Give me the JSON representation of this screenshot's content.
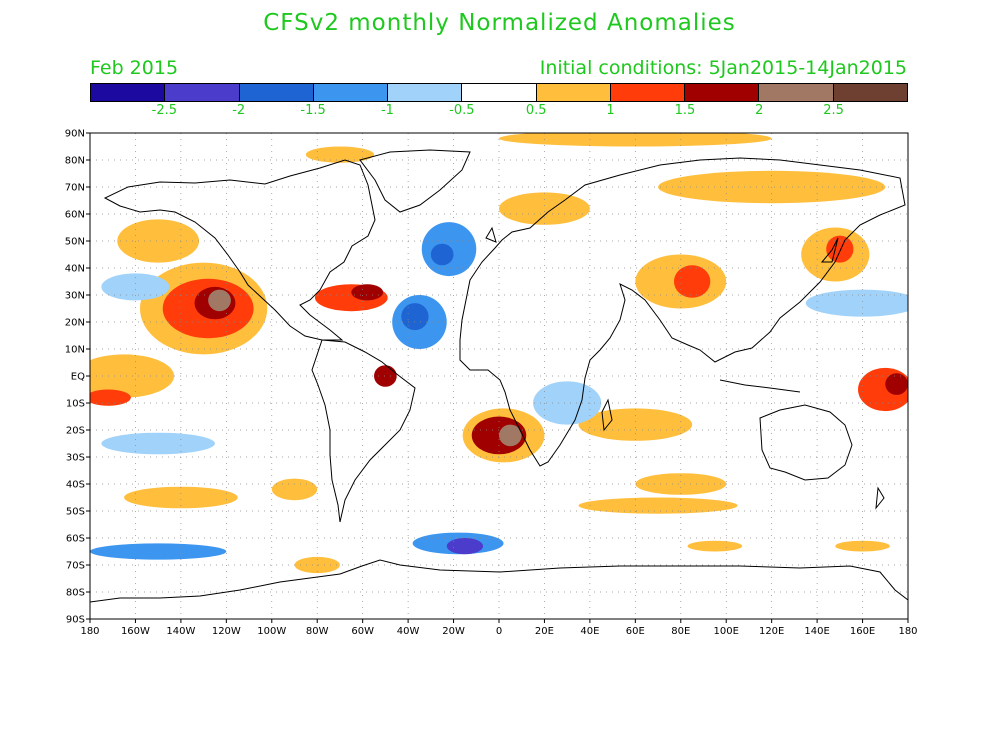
{
  "header": {
    "title": "CFSv2 monthly Normalized Anomalies",
    "valid_month": "Feb 2015",
    "initial_conditions": "Initial conditions: 5Jan2015-14Jan2015"
  },
  "colorbar": {
    "colors": [
      "#1c0aa0",
      "#4c3ccc",
      "#1e64d2",
      "#3c96f0",
      "#a0d2fa",
      "#ffffff",
      "#ffbe3c",
      "#ff3c0a",
      "#a00000",
      "#a07864",
      "#6e4032"
    ],
    "labels": [
      "-2.5",
      "-2",
      "-1.5",
      "-1",
      "-0.5",
      "0.5",
      "1",
      "1.5",
      "2",
      "2.5"
    ]
  },
  "map": {
    "lat_labels": [
      "90N",
      "80N",
      "70N",
      "60N",
      "50N",
      "40N",
      "30N",
      "20N",
      "10N",
      "EQ",
      "10S",
      "20S",
      "30S",
      "40S",
      "50S",
      "60S",
      "70S",
      "80S",
      "90S"
    ],
    "lon_labels": [
      "180",
      "160W",
      "140W",
      "120W",
      "100W",
      "80W",
      "60W",
      "40W",
      "20W",
      "0",
      "20E",
      "40E",
      "60E",
      "80E",
      "100E",
      "120E",
      "140E",
      "160E",
      "180"
    ],
    "anomaly_regions": [
      {
        "lon": -130,
        "lat": 25,
        "rx": 28,
        "ry": 17,
        "level": 0.8
      },
      {
        "lon": -128,
        "lat": 25,
        "rx": 20,
        "ry": 11,
        "level": 1.3
      },
      {
        "lon": -125,
        "lat": 27,
        "rx": 9,
        "ry": 6,
        "level": 1.9
      },
      {
        "lon": -123,
        "lat": 28,
        "rx": 5,
        "ry": 4,
        "level": 2.3
      },
      {
        "lon": -150,
        "lat": 50,
        "rx": 18,
        "ry": 8,
        "level": 0.7
      },
      {
        "lon": -165,
        "lat": 0,
        "rx": 22,
        "ry": 8,
        "level": 0.9
      },
      {
        "lon": -172,
        "lat": -8,
        "rx": 10,
        "ry": 3,
        "level": 1.4
      },
      {
        "lon": -160,
        "lat": 33,
        "rx": 15,
        "ry": 5,
        "level": -0.8
      },
      {
        "lon": -150,
        "lat": -25,
        "rx": 25,
        "ry": 4,
        "level": -0.7
      },
      {
        "lon": -65,
        "lat": 29,
        "rx": 16,
        "ry": 5,
        "level": 1.1
      },
      {
        "lon": -58,
        "lat": 31,
        "rx": 7,
        "ry": 3,
        "level": 1.7
      },
      {
        "lon": -35,
        "lat": 20,
        "rx": 12,
        "ry": 10,
        "level": -1.2
      },
      {
        "lon": -37,
        "lat": 22,
        "rx": 6,
        "ry": 5,
        "level": -1.8
      },
      {
        "lon": -22,
        "lat": 47,
        "rx": 12,
        "ry": 10,
        "level": -1.2
      },
      {
        "lon": -25,
        "lat": 45,
        "rx": 5,
        "ry": 4,
        "level": -1.6
      },
      {
        "lon": -50,
        "lat": 0,
        "rx": 5,
        "ry": 4,
        "level": 1.8
      },
      {
        "lon": 2,
        "lat": -22,
        "rx": 18,
        "ry": 10,
        "level": 0.9
      },
      {
        "lon": 0,
        "lat": -22,
        "rx": 12,
        "ry": 7,
        "level": 1.6
      },
      {
        "lon": 5,
        "lat": -22,
        "rx": 5,
        "ry": 4,
        "level": 2.2
      },
      {
        "lon": -18,
        "lat": -62,
        "rx": 20,
        "ry": 4,
        "level": -1.4
      },
      {
        "lon": -15,
        "lat": -63,
        "rx": 8,
        "ry": 3,
        "level": -2.2
      },
      {
        "lon": -150,
        "lat": -65,
        "rx": 30,
        "ry": 3,
        "level": -1.4
      },
      {
        "lon": -140,
        "lat": -45,
        "rx": 25,
        "ry": 4,
        "level": 0.7
      },
      {
        "lon": -90,
        "lat": -42,
        "rx": 10,
        "ry": 4,
        "level": 0.9
      },
      {
        "lon": 80,
        "lat": 35,
        "rx": 20,
        "ry": 10,
        "level": 0.8
      },
      {
        "lon": 85,
        "lat": 35,
        "rx": 8,
        "ry": 6,
        "level": 1.3
      },
      {
        "lon": 148,
        "lat": 45,
        "rx": 15,
        "ry": 10,
        "level": 0.9
      },
      {
        "lon": 150,
        "lat": 47,
        "rx": 6,
        "ry": 5,
        "level": 1.4
      },
      {
        "lon": 170,
        "lat": -5,
        "rx": 12,
        "ry": 8,
        "level": 1.0
      },
      {
        "lon": 175,
        "lat": -3,
        "rx": 5,
        "ry": 4,
        "level": 1.6
      },
      {
        "lon": 60,
        "lat": -18,
        "rx": 25,
        "ry": 6,
        "level": 0.7
      },
      {
        "lon": 80,
        "lat": -40,
        "rx": 20,
        "ry": 4,
        "level": 0.7
      },
      {
        "lon": 70,
        "lat": -48,
        "rx": 35,
        "ry": 3,
        "level": 0.6
      },
      {
        "lon": 160,
        "lat": 27,
        "rx": 25,
        "ry": 5,
        "level": -0.7
      },
      {
        "lon": 20,
        "lat": 62,
        "rx": 20,
        "ry": 6,
        "level": 0.6
      },
      {
        "lon": 120,
        "lat": 70,
        "rx": 50,
        "ry": 6,
        "level": 0.6
      },
      {
        "lon": 60,
        "lat": 88,
        "rx": 60,
        "ry": 3,
        "level": 0.6
      },
      {
        "lon": -70,
        "lat": 82,
        "rx": 15,
        "ry": 3,
        "level": 0.7
      },
      {
        "lon": -80,
        "lat": -70,
        "rx": 10,
        "ry": 3,
        "level": 0.8
      },
      {
        "lon": 95,
        "lat": -63,
        "rx": 12,
        "ry": 2,
        "level": 0.9
      },
      {
        "lon": 160,
        "lat": -63,
        "rx": 12,
        "ry": 2,
        "level": 0.8
      },
      {
        "lon": 30,
        "lat": -10,
        "rx": 15,
        "ry": 8,
        "level": -0.6
      }
    ]
  }
}
